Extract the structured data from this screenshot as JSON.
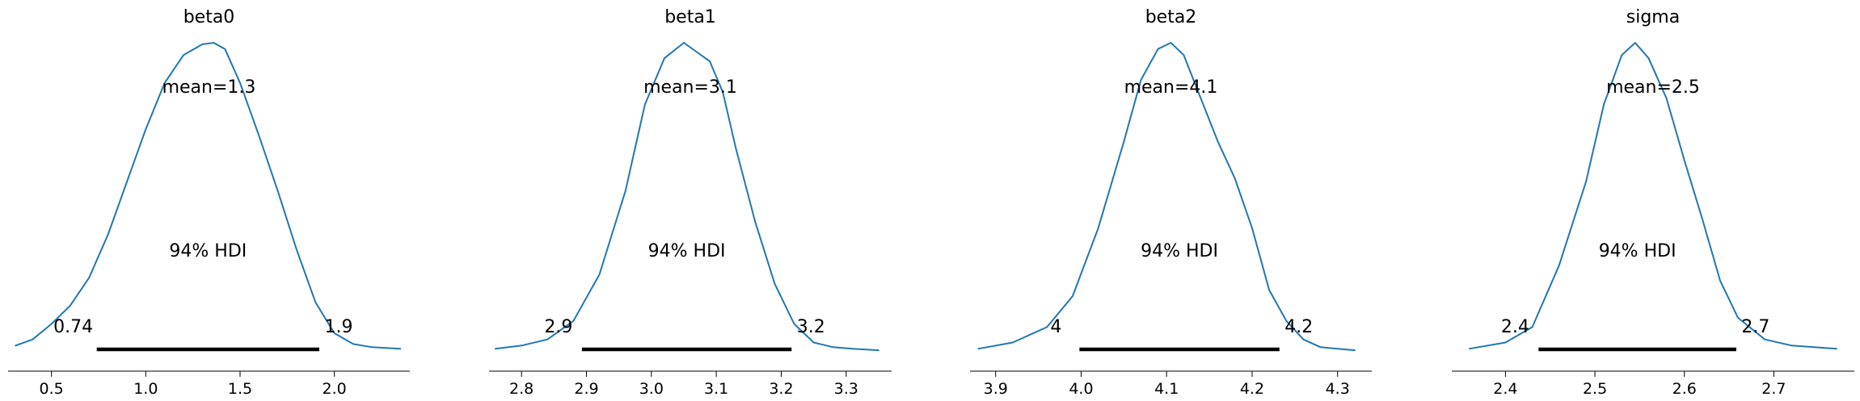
{
  "figure": {
    "type": "posterior-density-grid"
  },
  "chart_data": [
    {
      "type": "line",
      "title": "beta0",
      "mean_label": "mean=1.3",
      "hdi_label": "94% HDI",
      "hdi_low": 0.74,
      "hdi_high": 1.92,
      "hdi_low_label": "0.74",
      "hdi_high_label": "1.9",
      "xlim": [
        0.27,
        2.4
      ],
      "xticks": [
        0.5,
        1.0,
        1.5,
        2.0
      ],
      "xtick_labels": [
        "0.5",
        "1.0",
        "1.5",
        "2.0"
      ],
      "curve": {
        "x": [
          0.31,
          0.4,
          0.5,
          0.6,
          0.7,
          0.8,
          0.9,
          1.0,
          1.1,
          1.2,
          1.3,
          1.36,
          1.42,
          1.5,
          1.6,
          1.7,
          1.8,
          1.9,
          2.0,
          2.1,
          2.2,
          2.35
        ],
        "y": [
          0.02,
          0.04,
          0.09,
          0.15,
          0.24,
          0.38,
          0.55,
          0.72,
          0.87,
          0.96,
          0.995,
          1.0,
          0.98,
          0.87,
          0.7,
          0.52,
          0.33,
          0.16,
          0.06,
          0.025,
          0.015,
          0.01
        ]
      },
      "line_color": "#1f77b4"
    },
    {
      "type": "line",
      "title": "beta1",
      "mean_label": "mean=3.1",
      "hdi_label": "94% HDI",
      "hdi_low": 2.893,
      "hdi_high": 3.216,
      "hdi_low_label": "2.9",
      "hdi_high_label": "3.2",
      "xlim": [
        2.75,
        3.37
      ],
      "xticks": [
        2.8,
        2.9,
        3.0,
        3.1,
        3.2,
        3.3
      ],
      "xtick_labels": [
        "2.8",
        "2.9",
        "3.0",
        "3.1",
        "3.2",
        "3.3"
      ],
      "curve": {
        "x": [
          2.76,
          2.8,
          2.84,
          2.88,
          2.92,
          2.96,
          2.99,
          3.02,
          3.05,
          3.07,
          3.09,
          3.11,
          3.13,
          3.16,
          3.19,
          3.22,
          3.25,
          3.28,
          3.31,
          3.35
        ],
        "y": [
          0.01,
          0.02,
          0.04,
          0.1,
          0.25,
          0.52,
          0.8,
          0.95,
          1.0,
          0.97,
          0.94,
          0.84,
          0.66,
          0.42,
          0.22,
          0.09,
          0.03,
          0.015,
          0.01,
          0.005
        ]
      },
      "line_color": "#1f77b4"
    },
    {
      "type": "line",
      "title": "beta2",
      "mean_label": "mean=4.1",
      "hdi_label": "94% HDI",
      "hdi_low": 3.998,
      "hdi_high": 4.232,
      "hdi_low_label": "4",
      "hdi_high_label": "4.2",
      "xlim": [
        3.87,
        4.34
      ],
      "xticks": [
        3.9,
        4.0,
        4.1,
        4.2,
        4.3
      ],
      "xtick_labels": [
        "3.9",
        "4.0",
        "4.1",
        "4.2",
        "4.3"
      ],
      "curve": {
        "x": [
          3.88,
          3.92,
          3.96,
          3.99,
          4.02,
          4.05,
          4.07,
          4.09,
          4.105,
          4.12,
          4.14,
          4.16,
          4.18,
          4.2,
          4.22,
          4.24,
          4.26,
          4.28,
          4.32
        ],
        "y": [
          0.01,
          0.03,
          0.08,
          0.18,
          0.4,
          0.68,
          0.88,
          0.98,
          1.0,
          0.96,
          0.82,
          0.68,
          0.56,
          0.4,
          0.2,
          0.1,
          0.04,
          0.015,
          0.005
        ]
      },
      "line_color": "#1f77b4"
    },
    {
      "type": "line",
      "title": "sigma",
      "mean_label": "mean=2.5",
      "hdi_label": "94% HDI",
      "hdi_low": 2.437,
      "hdi_high": 2.658,
      "hdi_low_label": "2.4",
      "hdi_high_label": "2.7",
      "xlim": [
        2.34,
        2.79
      ],
      "xticks": [
        2.4,
        2.5,
        2.6,
        2.7
      ],
      "xtick_labels": [
        "2.4",
        "2.5",
        "2.6",
        "2.7"
      ],
      "curve": {
        "x": [
          2.36,
          2.4,
          2.43,
          2.46,
          2.49,
          2.51,
          2.53,
          2.545,
          2.56,
          2.58,
          2.6,
          2.62,
          2.64,
          2.66,
          2.69,
          2.72,
          2.77
        ],
        "y": [
          0.01,
          0.03,
          0.08,
          0.28,
          0.55,
          0.8,
          0.96,
          1.0,
          0.95,
          0.82,
          0.62,
          0.43,
          0.23,
          0.11,
          0.04,
          0.02,
          0.01
        ]
      },
      "line_color": "#1f77b4"
    }
  ]
}
